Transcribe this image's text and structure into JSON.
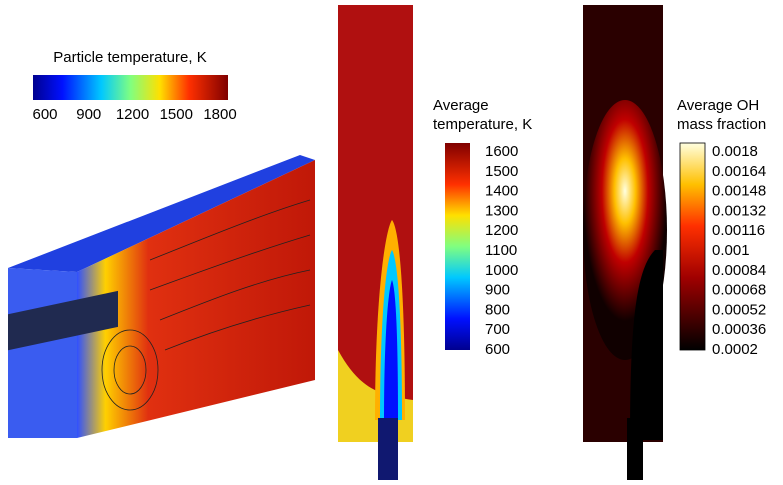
{
  "panels": [
    {
      "colorbar": {
        "title": [
          "Particle temperature, K"
        ],
        "ticks": [
          "600",
          "900",
          "1200",
          "1500",
          "1800"
        ]
      }
    },
    {
      "colorbar": {
        "title": [
          "Average",
          "temperature, K"
        ],
        "ticks": [
          "1600",
          "1500",
          "1400",
          "1300",
          "1200",
          "1100",
          "1000",
          "900",
          "800",
          "700",
          "600"
        ]
      }
    },
    {
      "colorbar": {
        "title": [
          "Average OH",
          "mass fraction"
        ],
        "ticks": [
          "0.0018",
          "0.00164",
          "0.00148",
          "0.00132",
          "0.00116",
          "0.001",
          "0.00084",
          "0.00068",
          "0.00052",
          "0.00036",
          "0.0002"
        ]
      }
    }
  ]
}
